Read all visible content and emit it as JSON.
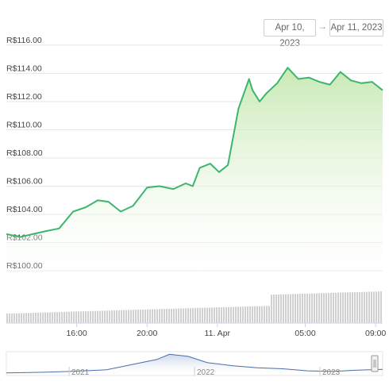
{
  "date_range": {
    "from": "Apr 10, 2023",
    "arrow": "→",
    "to": "Apr 11, 2023"
  },
  "colors": {
    "line": "#3db56f",
    "fill": "#cdebb9",
    "volume": "#c8c8c8",
    "navigator": "#4a6fa5",
    "navigator_fill": "#c6d3e8"
  },
  "chart_data": [
    {
      "type": "area",
      "title": "",
      "xlabel": "",
      "ylabel": "",
      "ylim": [
        99.5,
        116.5
      ],
      "y_ticks": [
        "R$100.00",
        "R$102.00",
        "R$104.00",
        "R$106.00",
        "R$108.00",
        "R$110.00",
        "R$112.00",
        "R$114.00",
        "R$116.00"
      ],
      "y_tick_values": [
        100,
        102,
        104,
        106,
        108,
        110,
        112,
        114,
        116
      ],
      "x_range_hours": [
        12.0,
        33.4
      ],
      "x_ticks": [
        "16:00",
        "20:00",
        "11. Apr",
        "05:00",
        "09:00"
      ],
      "x_tick_values": [
        16,
        20,
        24,
        29,
        33
      ],
      "x": [
        12.0,
        12.8,
        13.5,
        14.2,
        15.0,
        15.8,
        16.5,
        17.2,
        17.8,
        18.5,
        19.2,
        20.0,
        20.7,
        21.5,
        22.2,
        22.6,
        23.0,
        23.6,
        24.1,
        24.6,
        25.2,
        25.8,
        26.0,
        26.4,
        26.8,
        27.4,
        28.0,
        28.6,
        29.2,
        29.8,
        30.4,
        31.0,
        31.6,
        32.2,
        32.8,
        33.4
      ],
      "series": [
        {
          "values": [
            102.6,
            102.4,
            102.6,
            102.8,
            103.0,
            104.2,
            104.5,
            105.0,
            104.9,
            104.2,
            104.6,
            105.9,
            106.0,
            105.8,
            106.2,
            106.0,
            107.3,
            107.6,
            107.0,
            107.5,
            111.5,
            113.6,
            112.8,
            112.0,
            112.6,
            113.3,
            114.4,
            113.6,
            113.7,
            113.4,
            113.2,
            114.1,
            113.5,
            113.3,
            113.4,
            112.8
          ]
        }
      ],
      "volume_trend": "rising"
    },
    {
      "type": "line",
      "role": "navigator",
      "x_ticks": [
        "2021",
        "2022",
        "2023"
      ],
      "x_tick_values": [
        2021.0,
        2022.0,
        2023.0
      ],
      "x_range": [
        2020.5,
        2023.5
      ],
      "x": [
        2020.5,
        2020.8,
        2021.0,
        2021.3,
        2021.5,
        2021.7,
        2021.8,
        2021.95,
        2022.1,
        2022.3,
        2022.5,
        2022.7,
        2022.9,
        2023.1,
        2023.3,
        2023.5
      ],
      "series": [
        {
          "values": [
            0.05,
            0.08,
            0.12,
            0.2,
            0.45,
            0.7,
            0.95,
            0.85,
            0.55,
            0.4,
            0.3,
            0.25,
            0.15,
            0.12,
            0.18,
            0.22
          ]
        }
      ]
    }
  ]
}
